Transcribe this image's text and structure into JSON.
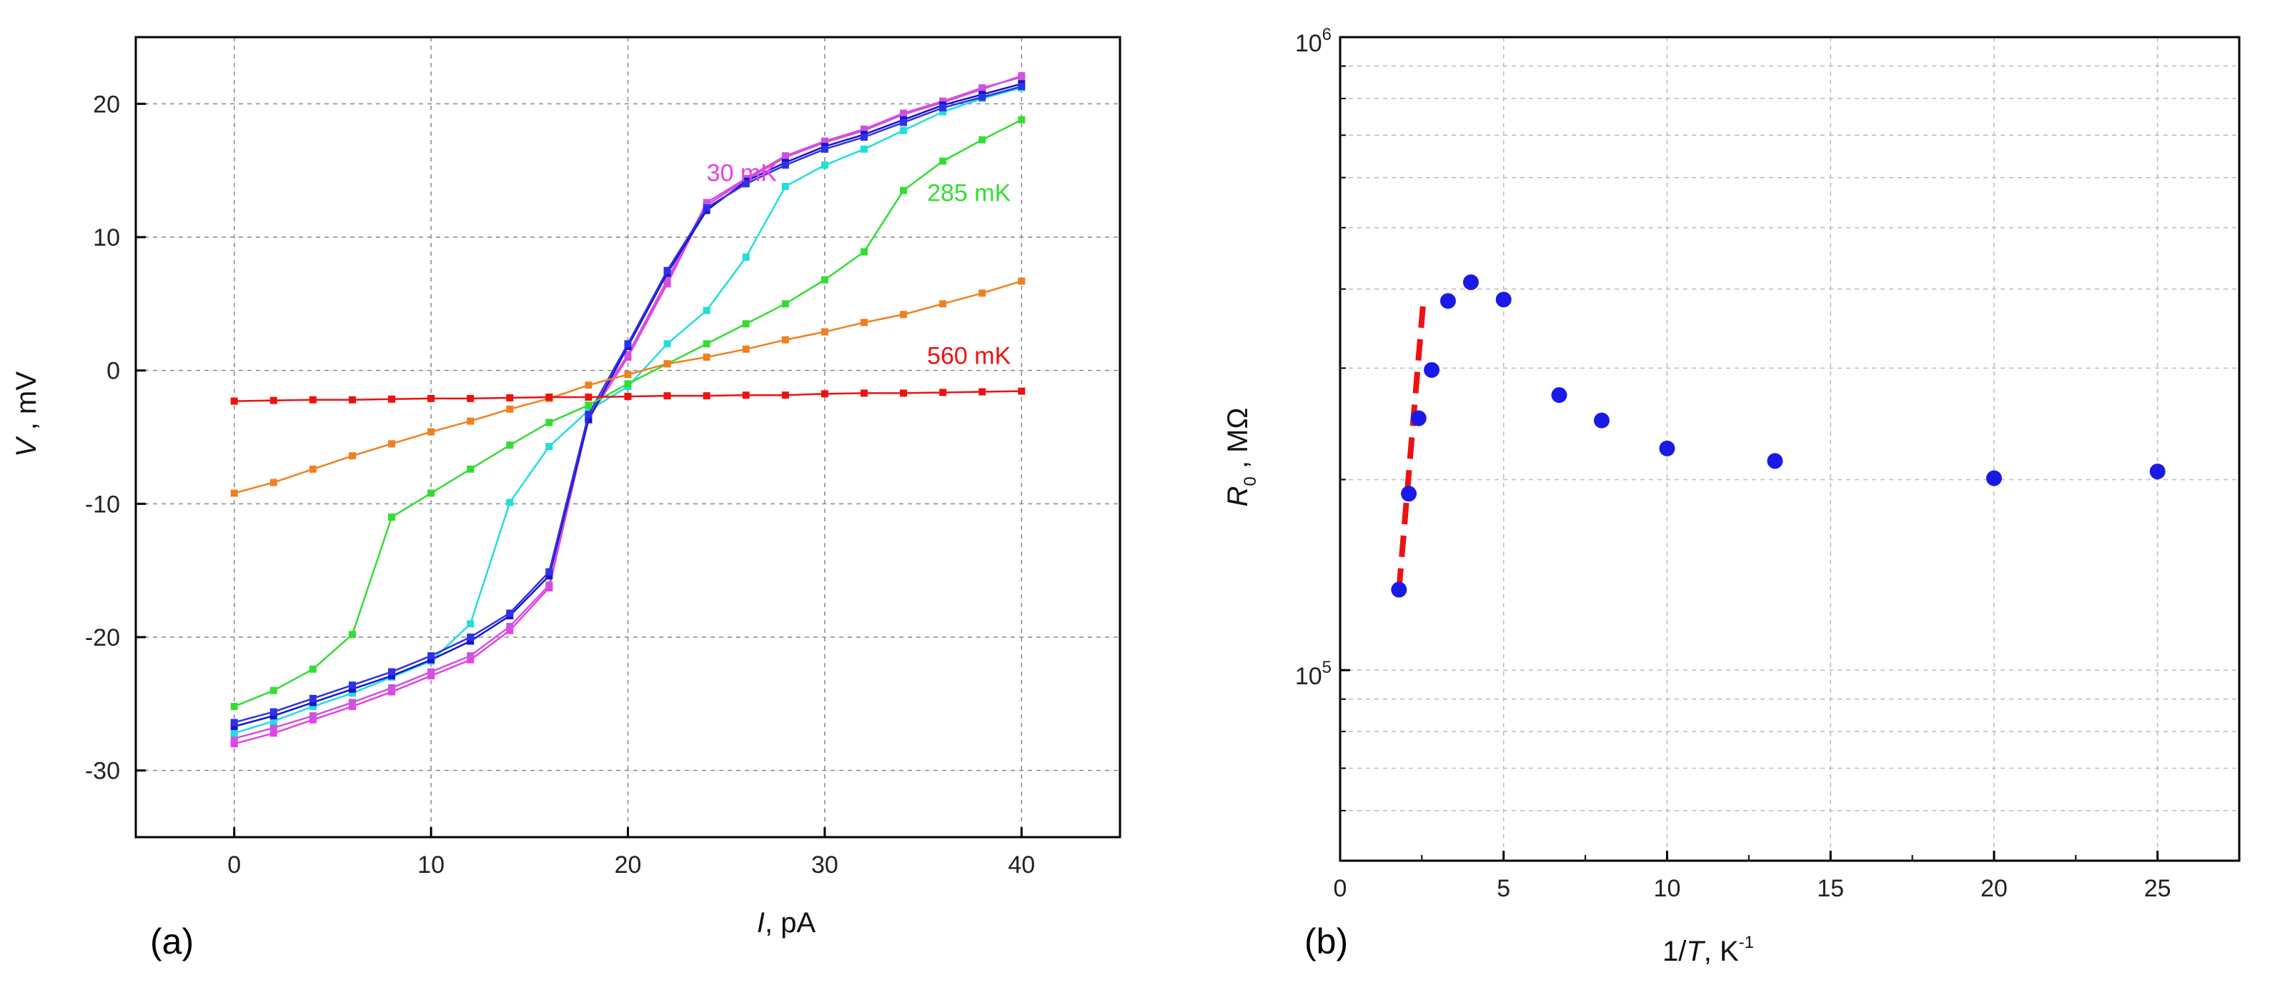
{
  "chart_data": [
    {
      "type": "line",
      "panel_label": "(a)",
      "xlabel": {
        "var": "I",
        "unit": ", pA"
      },
      "ylabel": {
        "var": "V",
        "unit": " , mV"
      },
      "xlim": [
        -5,
        45
      ],
      "ylim": [
        -35,
        25
      ],
      "xticks": [
        0,
        10,
        20,
        30,
        40
      ],
      "yticks": [
        -30,
        -20,
        -10,
        0,
        10,
        20
      ],
      "grid": true,
      "annotations": [
        {
          "text": "30 mK",
          "x": 24,
          "y": 14.2,
          "color": "#e83ee8"
        },
        {
          "text": "285 mK",
          "x": 35.2,
          "y": 12.7,
          "color": "#33dd33"
        },
        {
          "text": "560 mK",
          "x": 35.2,
          "y": 0.5,
          "color": "#ee1111"
        }
      ],
      "series": [
        {
          "name": "magenta",
          "color": "#e83ee8",
          "x": [
            0,
            2,
            4,
            6,
            8,
            10,
            12,
            14,
            16,
            18,
            20,
            22,
            24,
            26,
            28,
            30,
            32,
            34,
            36,
            38,
            40
          ],
          "y": [
            -28,
            -27.2,
            -26.2,
            -25.2,
            -24.1,
            -22.9,
            -21.7,
            -19.5,
            -16.3,
            -3.6,
            1,
            6.5,
            12.4,
            14.3,
            16,
            17.1,
            18,
            19.2,
            20.1,
            21.1,
            22.1
          ]
        },
        {
          "name": "magenta-2",
          "color": "#cc55dd",
          "x": [
            0,
            2,
            4,
            6,
            8,
            10,
            12,
            14,
            16,
            18,
            20,
            22,
            24,
            26,
            28,
            30,
            32,
            34,
            36,
            38,
            40
          ],
          "y": [
            -27.6,
            -26.8,
            -25.9,
            -24.9,
            -23.8,
            -22.6,
            -21.4,
            -19.2,
            -16.1,
            -3.4,
            1.2,
            6.8,
            12.6,
            14.4,
            16.1,
            17.2,
            18.1,
            19.3,
            20.2,
            21.2,
            22
          ]
        },
        {
          "name": "cyan",
          "color": "#22dddd",
          "x": [
            0,
            2,
            4,
            6,
            8,
            10,
            12,
            14,
            16,
            18,
            20,
            22,
            24,
            26,
            28,
            30,
            32,
            34,
            36,
            38,
            40
          ],
          "y": [
            -27.2,
            -26.3,
            -25.2,
            -24.2,
            -23,
            -21.8,
            -19,
            -9.9,
            -5.7,
            -3,
            -1.2,
            2,
            4.5,
            8.5,
            13.8,
            15.4,
            16.6,
            18,
            19.4,
            20.4,
            21.2
          ]
        },
        {
          "name": "blue",
          "color": "#1515cc",
          "x": [
            0,
            2,
            4,
            6,
            8,
            10,
            12,
            14,
            16,
            18,
            20,
            22,
            24,
            26,
            28,
            30,
            32,
            34,
            36,
            38,
            40
          ],
          "y": [
            -26.7,
            -25.9,
            -24.9,
            -23.9,
            -22.9,
            -21.7,
            -20.3,
            -18.4,
            -15.4,
            -3.7,
            1.8,
            7.3,
            12,
            14.2,
            15.6,
            16.8,
            17.7,
            18.8,
            19.9,
            20.7,
            21.5
          ]
        },
        {
          "name": "blue-2",
          "color": "#3030e8",
          "x": [
            0,
            2,
            4,
            6,
            8,
            10,
            12,
            14,
            16,
            18,
            20,
            22,
            24,
            26,
            28,
            30,
            32,
            34,
            36,
            38,
            40
          ],
          "y": [
            -26.4,
            -25.6,
            -24.6,
            -23.6,
            -22.6,
            -21.4,
            -20.0,
            -18.2,
            -15.1,
            -3.3,
            2.0,
            7.5,
            12.2,
            14.0,
            15.4,
            16.6,
            17.5,
            18.6,
            19.7,
            20.5,
            21.3
          ]
        },
        {
          "name": "green",
          "color": "#33dd33",
          "x": [
            0,
            2,
            4,
            6,
            8,
            10,
            12,
            14,
            16,
            18,
            20,
            22,
            24,
            26,
            28,
            30,
            32,
            34,
            36,
            38,
            40
          ],
          "y": [
            -25.2,
            -24,
            -22.4,
            -19.8,
            -11,
            -9.2,
            -7.4,
            -5.6,
            -3.9,
            -2.6,
            -1,
            0.5,
            2,
            3.5,
            5,
            6.8,
            8.9,
            13.5,
            15.7,
            17.3,
            18.8
          ]
        },
        {
          "name": "orange",
          "color": "#f08020",
          "x": [
            0,
            2,
            4,
            6,
            8,
            10,
            12,
            14,
            16,
            18,
            20,
            22,
            24,
            26,
            28,
            30,
            32,
            34,
            36,
            38,
            40
          ],
          "y": [
            -9.2,
            -8.4,
            -7.4,
            -6.4,
            -5.5,
            -4.6,
            -3.8,
            -2.9,
            -2.1,
            -1.1,
            -0.3,
            0.5,
            1.0,
            1.6,
            2.3,
            2.9,
            3.6,
            4.2,
            5.0,
            5.8,
            6.7
          ]
        },
        {
          "name": "red",
          "color": "#ee1111",
          "x": [
            0,
            2,
            4,
            6,
            8,
            10,
            12,
            14,
            16,
            18,
            20,
            22,
            24,
            26,
            28,
            30,
            32,
            34,
            36,
            38,
            40
          ],
          "y": [
            -2.3,
            -2.25,
            -2.2,
            -2.2,
            -2.15,
            -2.1,
            -2.1,
            -2.05,
            -2,
            -2,
            -1.95,
            -1.9,
            -1.9,
            -1.85,
            -1.85,
            -1.75,
            -1.7,
            -1.7,
            -1.65,
            -1.6,
            -1.55
          ]
        }
      ]
    },
    {
      "type": "scatter",
      "panel_label": "(b)",
      "xlabel": {
        "pre": "1/",
        "var": "T",
        "unit": ", K",
        "sup": "-1"
      },
      "ylabel": {
        "var": "R",
        "sub": "0",
        "unit": " , MΩ"
      },
      "xlim": [
        0,
        27.5
      ],
      "yscale": "log",
      "ylim": [
        50000,
        1000000
      ],
      "xticks": [
        0,
        5,
        10,
        15,
        20,
        25
      ],
      "yticks": [
        {
          "value": 100000,
          "base": "10",
          "exp": "5"
        },
        {
          "value": 1000000,
          "base": "10",
          "exp": "6"
        }
      ],
      "grid": true,
      "series": [
        {
          "name": "R0",
          "color": "#1a1ae6",
          "x": [
            1.8,
            2.1,
            2.4,
            2.8,
            3.3,
            4.0,
            5.0,
            6.7,
            8.0,
            10.0,
            13.3,
            20.0,
            25.0
          ],
          "y": [
            134000,
            190000,
            250000,
            298000,
            383000,
            410000,
            385000,
            272000,
            248000,
            224000,
            214000,
            201000,
            206000
          ]
        }
      ],
      "fit": {
        "style": "dashed",
        "color": "#ee1111",
        "x": [
          1.8,
          2.55
        ],
        "y": [
          134000,
          385000
        ]
      }
    }
  ]
}
